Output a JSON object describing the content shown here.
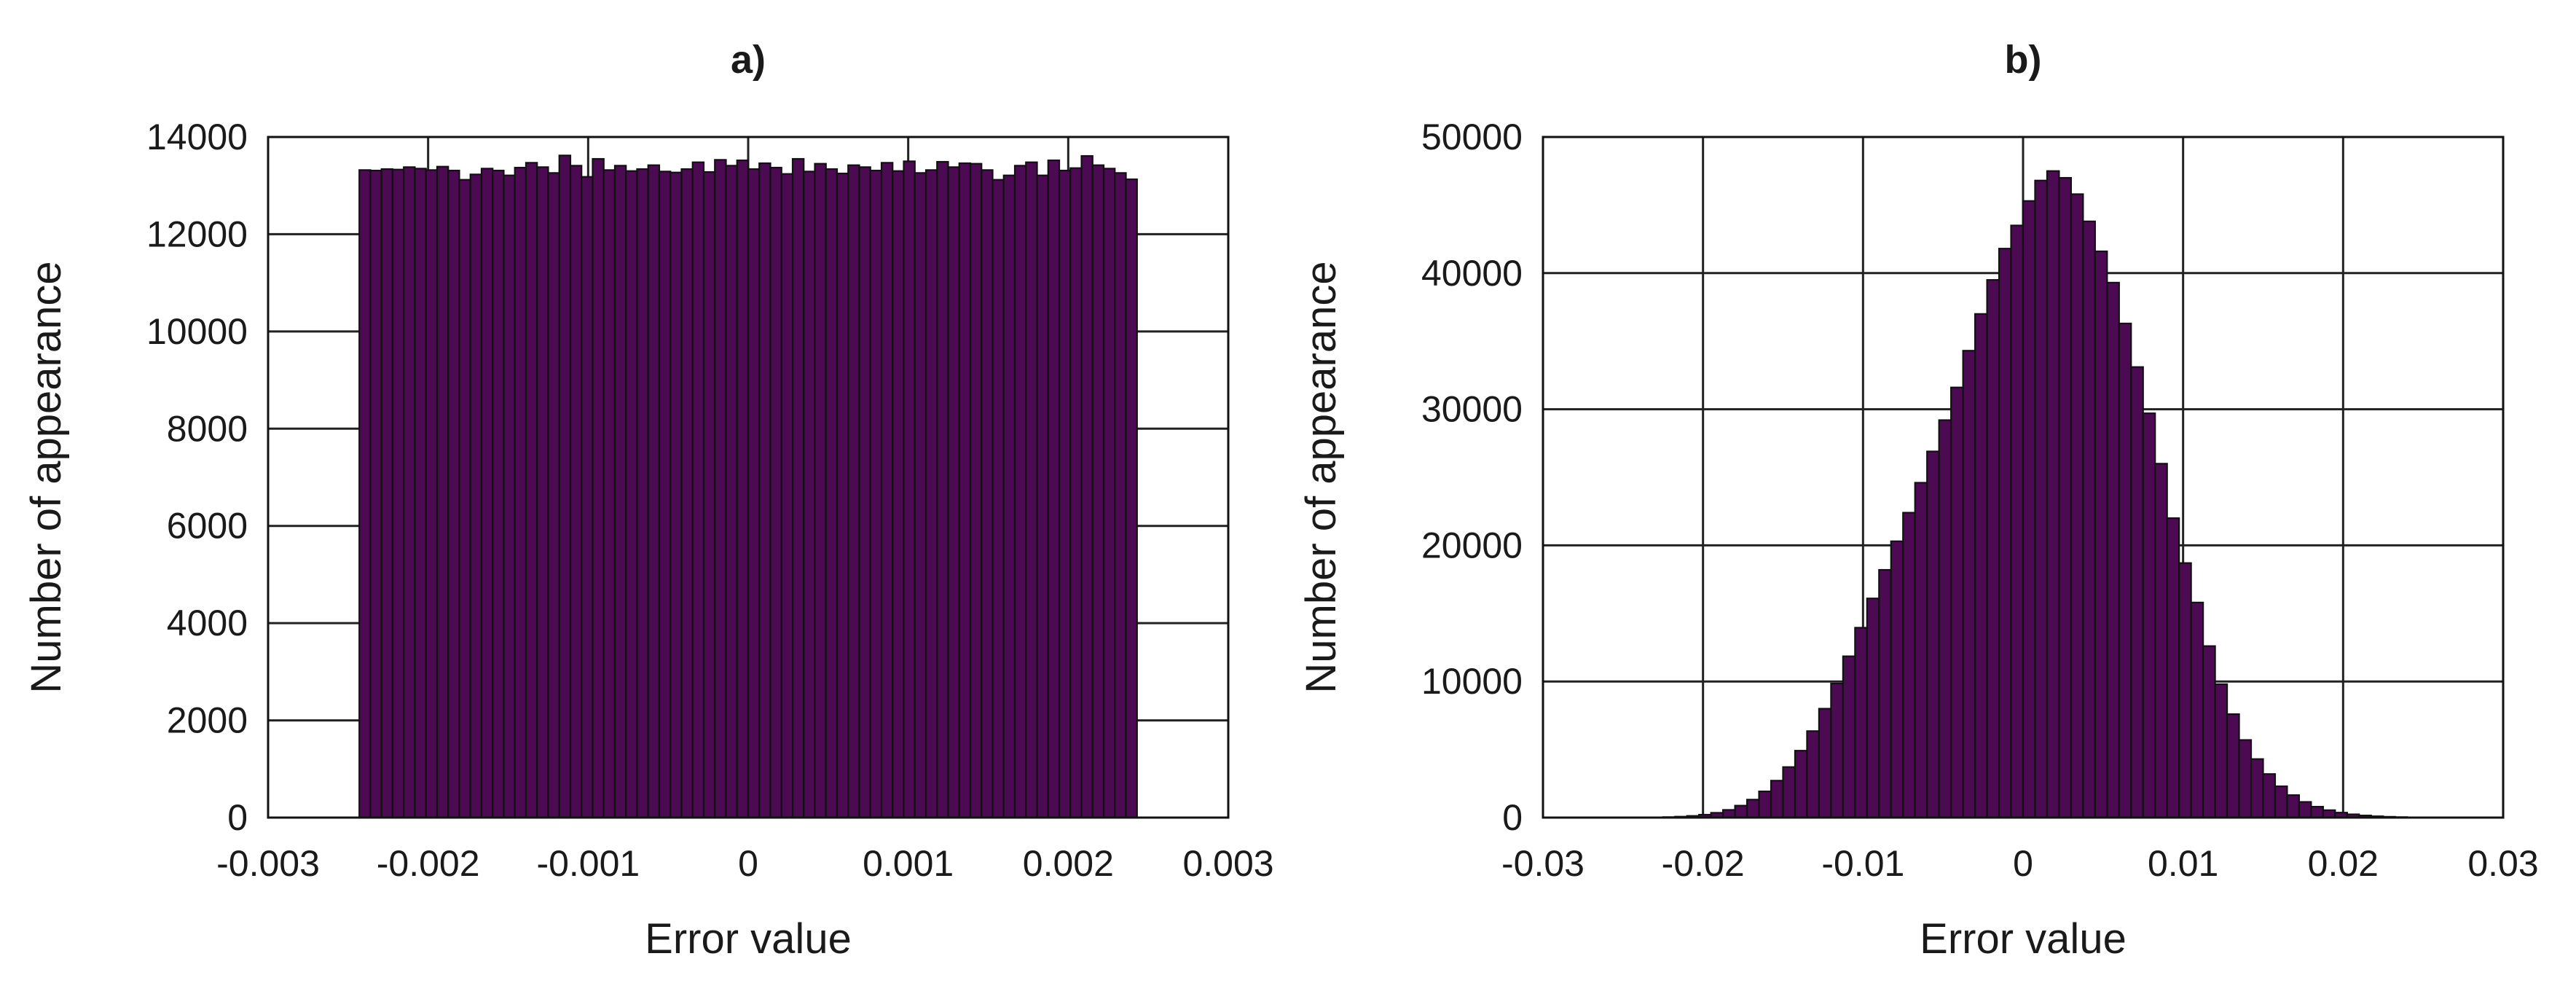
{
  "figure": {
    "bar_color": "#4b0a52",
    "edge_color": "#111111"
  },
  "chart_data": [
    {
      "type": "bar",
      "title": "a)",
      "xlabel": "Error value",
      "ylabel": "Number of appearance",
      "xlim": [
        -0.003,
        0.003
      ],
      "ylim": [
        0,
        14000
      ],
      "xticks": [
        -0.003,
        -0.002,
        -0.001,
        0,
        0.001,
        0.002,
        0.003
      ],
      "xtick_labels": [
        "-0.003",
        "-0.002",
        "-0.001",
        "0",
        "0.001",
        "0.002",
        "0.003"
      ],
      "yticks": [
        0,
        2000,
        4000,
        6000,
        8000,
        10000,
        12000,
        14000
      ],
      "ytick_labels": [
        "0",
        "2000",
        "4000",
        "6000",
        "8000",
        "10000",
        "12000",
        "14000"
      ],
      "grid": true,
      "bin_range": [
        -0.00243,
        0.00243
      ],
      "values": [
        13320,
        13310,
        13340,
        13330,
        13380,
        13350,
        13320,
        13390,
        13310,
        13120,
        13230,
        13350,
        13310,
        13210,
        13370,
        13470,
        13380,
        13260,
        13620,
        13410,
        13180,
        13550,
        13320,
        13410,
        13300,
        13340,
        13420,
        13290,
        13270,
        13340,
        13480,
        13280,
        13530,
        13410,
        13520,
        13340,
        13460,
        13370,
        13240,
        13550,
        13290,
        13450,
        13340,
        13250,
        13420,
        13380,
        13310,
        13470,
        13300,
        13500,
        13260,
        13320,
        13490,
        13380,
        13460,
        13450,
        13320,
        13120,
        13210,
        13410,
        13480,
        13210,
        13520,
        13310,
        13360,
        13610,
        13420,
        13350,
        13260,
        13130
      ]
    },
    {
      "type": "bar",
      "title": "b)",
      "xlabel": "Error value",
      "ylabel": "Number of appearance",
      "xlim": [
        -0.03,
        0.03
      ],
      "ylim": [
        0,
        50000
      ],
      "xticks": [
        -0.03,
        -0.02,
        -0.01,
        0,
        0.01,
        0.02,
        0.03
      ],
      "xtick_labels": [
        "-0.03",
        "-0.02",
        "-0.01",
        "0",
        "0.01",
        "0.02",
        "0.03"
      ],
      "yticks": [
        0,
        10000,
        20000,
        30000,
        40000,
        50000
      ],
      "ytick_labels": [
        "0",
        "10000",
        "20000",
        "30000",
        "40000",
        "50000"
      ],
      "grid": true,
      "bin_range": [
        -0.03,
        0.03
      ],
      "values": [
        0,
        0,
        0,
        0,
        0,
        0,
        0,
        0,
        8,
        18,
        37,
        69,
        123,
        212,
        352,
        565,
        878,
        1320,
        1925,
        2713,
        3712,
        4915,
        6354,
        8000,
        9850,
        11850,
        13950,
        16100,
        18200,
        20300,
        22400,
        24600,
        26900,
        29200,
        31600,
        34300,
        37000,
        39500,
        41800,
        43500,
        45300,
        46800,
        47500,
        47000,
        45800,
        43800,
        41600,
        39300,
        36300,
        33100,
        29700,
        26000,
        22000,
        18700,
        15800,
        12600,
        9800,
        7600,
        5700,
        4300,
        3200,
        2300,
        1650,
        1150,
        800,
        545,
        365,
        240,
        154,
        97,
        60,
        36,
        21,
        12,
        7,
        4,
        2,
        1,
        0,
        0
      ]
    }
  ]
}
